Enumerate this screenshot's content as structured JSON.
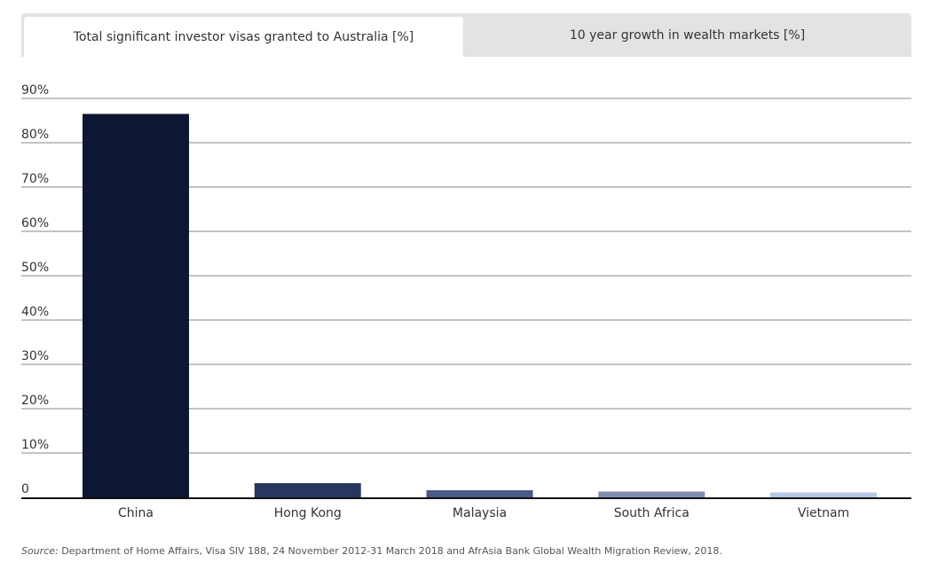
{
  "tabs": [
    {
      "label": "Total significant investor visas granted to Australia [%]",
      "active": true
    },
    {
      "label": "10 year growth in wealth markets [%]",
      "active": false
    }
  ],
  "chart_data": {
    "type": "bar",
    "title": "Total significant investor visas granted to Australia [%]",
    "categories": [
      "China",
      "Hong Kong",
      "Malaysia",
      "South Africa",
      "Vietnam"
    ],
    "values": [
      86.5,
      3.2,
      1.6,
      1.3,
      1.1
    ],
    "colors": [
      "#0d1733",
      "#28375f",
      "#4b5a86",
      "#7f8db5",
      "#b4c8e6"
    ],
    "ylim": [
      0,
      90
    ],
    "yticks": [
      0,
      10,
      20,
      30,
      40,
      50,
      60,
      70,
      80,
      90
    ],
    "ytick_labels": [
      "0",
      "10%",
      "20%",
      "30%",
      "40%",
      "50%",
      "60%",
      "70%",
      "80%",
      "90%"
    ],
    "xlabel": "",
    "ylabel": "",
    "grid": true
  },
  "source": {
    "label": "Source:",
    "text": "Department of Home Affairs, Visa SIV 188, 24 November 2012-31 March 2018 and AfrAsia Bank Global Wealth Migration Review, 2018."
  }
}
